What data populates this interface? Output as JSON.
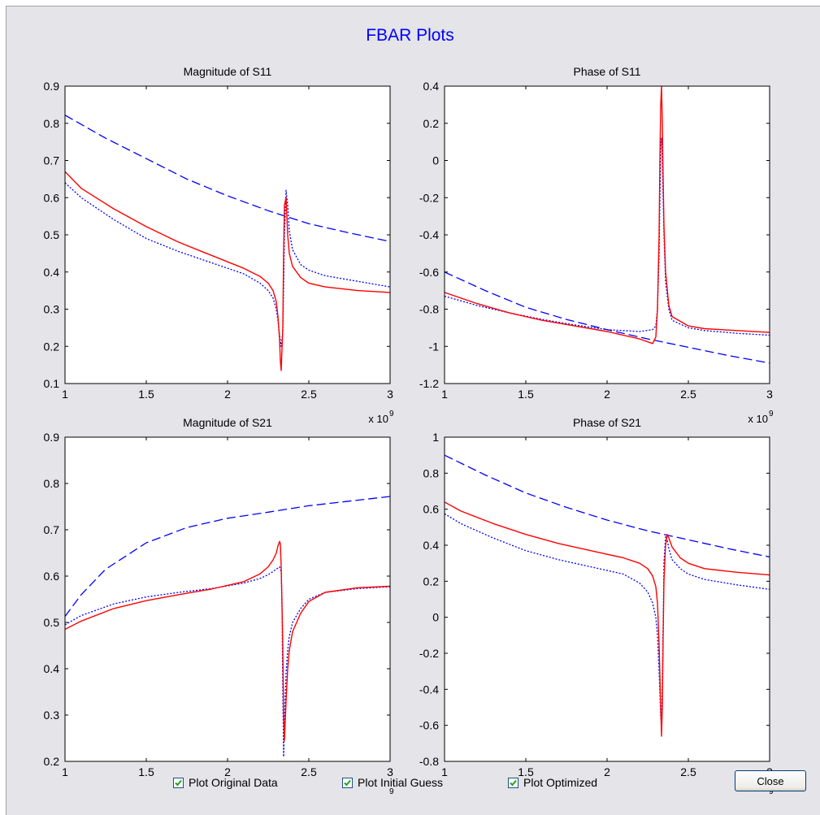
{
  "figure_title": "FBAR Plots",
  "checkboxes": [
    {
      "label": "Plot Original Data",
      "checked": true
    },
    {
      "label": "Plot Initial Guess",
      "checked": true
    },
    {
      "label": "Plot Optimized",
      "checked": true
    }
  ],
  "close_label": "Close",
  "colors": {
    "original": "#0000ff",
    "initial": "#0000ff",
    "optimized": "#ff0000",
    "title": "#0000ff"
  },
  "chart_data": [
    {
      "type": "line",
      "title": "Magnitude of S11",
      "xlim": [
        1,
        3
      ],
      "ylim": [
        0.1,
        0.9
      ],
      "xticks": [
        "1",
        "1.5",
        "2",
        "2.5",
        "3"
      ],
      "yticks": [
        "0.1",
        "0.2",
        "0.3",
        "0.4",
        "0.5",
        "0.6",
        "0.7",
        "0.8",
        "0.9"
      ],
      "xtick_values": [
        1,
        1.5,
        2,
        2.5,
        3
      ],
      "ytick_values": [
        0.1,
        0.2,
        0.3,
        0.4,
        0.5,
        0.6,
        0.7,
        0.8,
        0.9
      ],
      "x_exponent": {
        "base": "x 10",
        "exp": "9"
      },
      "series": [
        {
          "style": "dotted",
          "x": [
            1,
            1.1,
            1.3,
            1.5,
            1.7,
            1.9,
            2.1,
            2.2,
            2.25,
            2.28,
            2.3,
            2.31,
            2.32,
            2.33,
            2.34,
            2.345,
            2.35,
            2.36,
            2.37,
            2.38,
            2.4,
            2.45,
            2.5,
            2.6,
            2.8,
            3
          ],
          "y": [
            0.64,
            0.6,
            0.541,
            0.49,
            0.455,
            0.425,
            0.395,
            0.37,
            0.35,
            0.33,
            0.3,
            0.27,
            0.23,
            0.2,
            0.24,
            0.36,
            0.5,
            0.62,
            0.58,
            0.51,
            0.46,
            0.42,
            0.405,
            0.39,
            0.375,
            0.36
          ]
        },
        {
          "style": "dashed",
          "x": [
            1,
            1.25,
            1.5,
            1.75,
            2,
            2.25,
            2.5,
            2.75,
            3
          ],
          "y": [
            0.822,
            0.76,
            0.705,
            0.65,
            0.605,
            0.565,
            0.53,
            0.505,
            0.482
          ]
        },
        {
          "style": "solid",
          "x": [
            1,
            1.1,
            1.3,
            1.5,
            1.7,
            1.9,
            2.1,
            2.2,
            2.25,
            2.28,
            2.3,
            2.31,
            2.32,
            2.325,
            2.33,
            2.34,
            2.345,
            2.35,
            2.36,
            2.37,
            2.38,
            2.4,
            2.45,
            2.5,
            2.6,
            2.8,
            3
          ],
          "y": [
            0.67,
            0.625,
            0.57,
            0.522,
            0.48,
            0.445,
            0.41,
            0.388,
            0.37,
            0.35,
            0.32,
            0.28,
            0.22,
            0.16,
            0.135,
            0.25,
            0.45,
            0.58,
            0.6,
            0.5,
            0.45,
            0.415,
            0.385,
            0.37,
            0.36,
            0.35,
            0.345
          ]
        }
      ]
    },
    {
      "type": "line",
      "title": "Phase of S11",
      "xlim": [
        1,
        3
      ],
      "ylim": [
        -1.2,
        0.4
      ],
      "xticks": [
        "1",
        "1.5",
        "2",
        "2.5",
        "3"
      ],
      "yticks": [
        "-1.2",
        "-1",
        "-0.8",
        "-0.6",
        "-0.4",
        "-0.2",
        "0",
        "0.2",
        "0.4"
      ],
      "xtick_values": [
        1,
        1.5,
        2,
        2.5,
        3
      ],
      "ytick_values": [
        -1.2,
        -1,
        -0.8,
        -0.6,
        -0.4,
        -0.2,
        0,
        0.2,
        0.4
      ],
      "x_exponent": {
        "base": "x 10",
        "exp": "9"
      },
      "series": [
        {
          "style": "dotted",
          "x": [
            1,
            1.2,
            1.4,
            1.6,
            1.8,
            2,
            2.2,
            2.28,
            2.3,
            2.31,
            2.32,
            2.325,
            2.33,
            2.335,
            2.34,
            2.345,
            2.35,
            2.36,
            2.38,
            2.4,
            2.5,
            2.6,
            2.8,
            3
          ],
          "y": [
            -0.73,
            -0.78,
            -0.82,
            -0.855,
            -0.885,
            -0.91,
            -0.92,
            -0.91,
            -0.89,
            -0.8,
            -0.5,
            -0.2,
            0.05,
            0.12,
            0,
            -0.2,
            -0.4,
            -0.65,
            -0.8,
            -0.86,
            -0.9,
            -0.915,
            -0.93,
            -0.94
          ]
        },
        {
          "style": "dashed",
          "x": [
            1,
            1.25,
            1.5,
            1.75,
            2,
            2.25,
            2.5,
            2.75,
            3
          ],
          "y": [
            -0.6,
            -0.7,
            -0.79,
            -0.855,
            -0.91,
            -0.96,
            -1.005,
            -1.05,
            -1.09
          ]
        },
        {
          "style": "solid",
          "x": [
            1,
            1.2,
            1.4,
            1.6,
            1.8,
            2,
            2.2,
            2.28,
            2.3,
            2.31,
            2.32,
            2.325,
            2.33,
            2.335,
            2.34,
            2.345,
            2.35,
            2.36,
            2.38,
            2.4,
            2.5,
            2.6,
            2.8,
            3
          ],
          "y": [
            -0.71,
            -0.77,
            -0.82,
            -0.86,
            -0.89,
            -0.92,
            -0.96,
            -0.985,
            -0.95,
            -0.8,
            -0.4,
            0,
            0.3,
            0.4,
            0.2,
            -0.1,
            -0.35,
            -0.6,
            -0.78,
            -0.84,
            -0.89,
            -0.905,
            -0.915,
            -0.925
          ]
        }
      ]
    },
    {
      "type": "line",
      "title": "Magnitude of S21",
      "xlim": [
        1,
        3
      ],
      "ylim": [
        0.2,
        0.9
      ],
      "xticks": [
        "1",
        "1.5",
        "2",
        "2.5",
        "3"
      ],
      "yticks": [
        "0.2",
        "0.3",
        "0.4",
        "0.5",
        "0.6",
        "0.7",
        "0.8",
        "0.9"
      ],
      "xtick_values": [
        1,
        1.5,
        2,
        2.5,
        3
      ],
      "ytick_values": [
        0.2,
        0.3,
        0.4,
        0.5,
        0.6,
        0.7,
        0.8,
        0.9
      ],
      "x_exponent": {
        "base": "",
        "exp": "9"
      },
      "series": [
        {
          "style": "dotted",
          "x": [
            1,
            1.1,
            1.3,
            1.5,
            1.7,
            1.9,
            2.1,
            2.2,
            2.25,
            2.28,
            2.3,
            2.32,
            2.33,
            2.335,
            2.34,
            2.345,
            2.35,
            2.36,
            2.37,
            2.38,
            2.4,
            2.45,
            2.5,
            2.6,
            2.8,
            3
          ],
          "y": [
            0.495,
            0.515,
            0.54,
            0.555,
            0.565,
            0.573,
            0.585,
            0.595,
            0.603,
            0.61,
            0.615,
            0.62,
            0.61,
            0.55,
            0.35,
            0.21,
            0.29,
            0.39,
            0.44,
            0.47,
            0.5,
            0.53,
            0.55,
            0.565,
            0.573,
            0.577
          ]
        },
        {
          "style": "dashed",
          "x": [
            1,
            1.1,
            1.25,
            1.5,
            1.75,
            2,
            2.25,
            2.5,
            2.75,
            3
          ],
          "y": [
            0.513,
            0.56,
            0.615,
            0.672,
            0.705,
            0.725,
            0.738,
            0.752,
            0.762,
            0.772
          ]
        },
        {
          "style": "solid",
          "x": [
            1,
            1.1,
            1.3,
            1.5,
            1.7,
            1.9,
            2.1,
            2.2,
            2.25,
            2.28,
            2.3,
            2.31,
            2.32,
            2.325,
            2.33,
            2.34,
            2.345,
            2.35,
            2.36,
            2.37,
            2.38,
            2.4,
            2.45,
            2.5,
            2.6,
            2.8,
            3
          ],
          "y": [
            0.485,
            0.503,
            0.53,
            0.547,
            0.56,
            0.572,
            0.588,
            0.605,
            0.62,
            0.635,
            0.65,
            0.665,
            0.675,
            0.67,
            0.62,
            0.45,
            0.3,
            0.245,
            0.33,
            0.4,
            0.44,
            0.48,
            0.52,
            0.545,
            0.565,
            0.575,
            0.578
          ]
        }
      ]
    },
    {
      "type": "line",
      "title": "Phase of S21",
      "xlim": [
        1,
        3
      ],
      "ylim": [
        -0.8,
        1
      ],
      "xticks": [
        "1",
        "1.5",
        "2",
        "2.5",
        "3"
      ],
      "yticks": [
        "-0.8",
        "-0.6",
        "-0.4",
        "-0.2",
        "0",
        "0.2",
        "0.4",
        "0.6",
        "0.8",
        "1"
      ],
      "xtick_values": [
        1,
        1.5,
        2,
        2.5,
        3
      ],
      "ytick_values": [
        -0.8,
        -0.6,
        -0.4,
        -0.2,
        0,
        0.2,
        0.4,
        0.6,
        0.8,
        1
      ],
      "x_exponent": {
        "base": "",
        "exp": "9"
      },
      "series": [
        {
          "style": "dotted",
          "x": [
            1,
            1.1,
            1.3,
            1.5,
            1.7,
            1.9,
            2.1,
            2.2,
            2.25,
            2.28,
            2.3,
            2.31,
            2.32,
            2.33,
            2.335,
            2.34,
            2.345,
            2.35,
            2.36,
            2.37,
            2.38,
            2.4,
            2.45,
            2.5,
            2.6,
            2.8,
            3
          ],
          "y": [
            0.575,
            0.52,
            0.44,
            0.37,
            0.32,
            0.28,
            0.24,
            0.19,
            0.14,
            0.08,
            0,
            -0.1,
            -0.3,
            -0.55,
            -0.6,
            -0.4,
            -0.05,
            0.3,
            0.45,
            0.43,
            0.38,
            0.32,
            0.27,
            0.24,
            0.21,
            0.18,
            0.155
          ]
        },
        {
          "style": "dashed",
          "x": [
            1,
            1.25,
            1.5,
            1.75,
            2,
            2.25,
            2.5,
            2.75,
            3
          ],
          "y": [
            0.9,
            0.79,
            0.69,
            0.61,
            0.54,
            0.48,
            0.43,
            0.38,
            0.335
          ]
        },
        {
          "style": "solid",
          "x": [
            1,
            1.1,
            1.3,
            1.5,
            1.7,
            1.9,
            2.1,
            2.2,
            2.25,
            2.28,
            2.3,
            2.31,
            2.32,
            2.33,
            2.335,
            2.34,
            2.345,
            2.35,
            2.36,
            2.37,
            2.38,
            2.4,
            2.45,
            2.5,
            2.6,
            2.8,
            3
          ],
          "y": [
            0.64,
            0.59,
            0.52,
            0.46,
            0.41,
            0.37,
            0.33,
            0.3,
            0.27,
            0.23,
            0.17,
            0.08,
            -0.15,
            -0.5,
            -0.66,
            -0.5,
            -0.1,
            0.2,
            0.4,
            0.46,
            0.44,
            0.39,
            0.33,
            0.3,
            0.27,
            0.25,
            0.235
          ]
        }
      ]
    }
  ]
}
